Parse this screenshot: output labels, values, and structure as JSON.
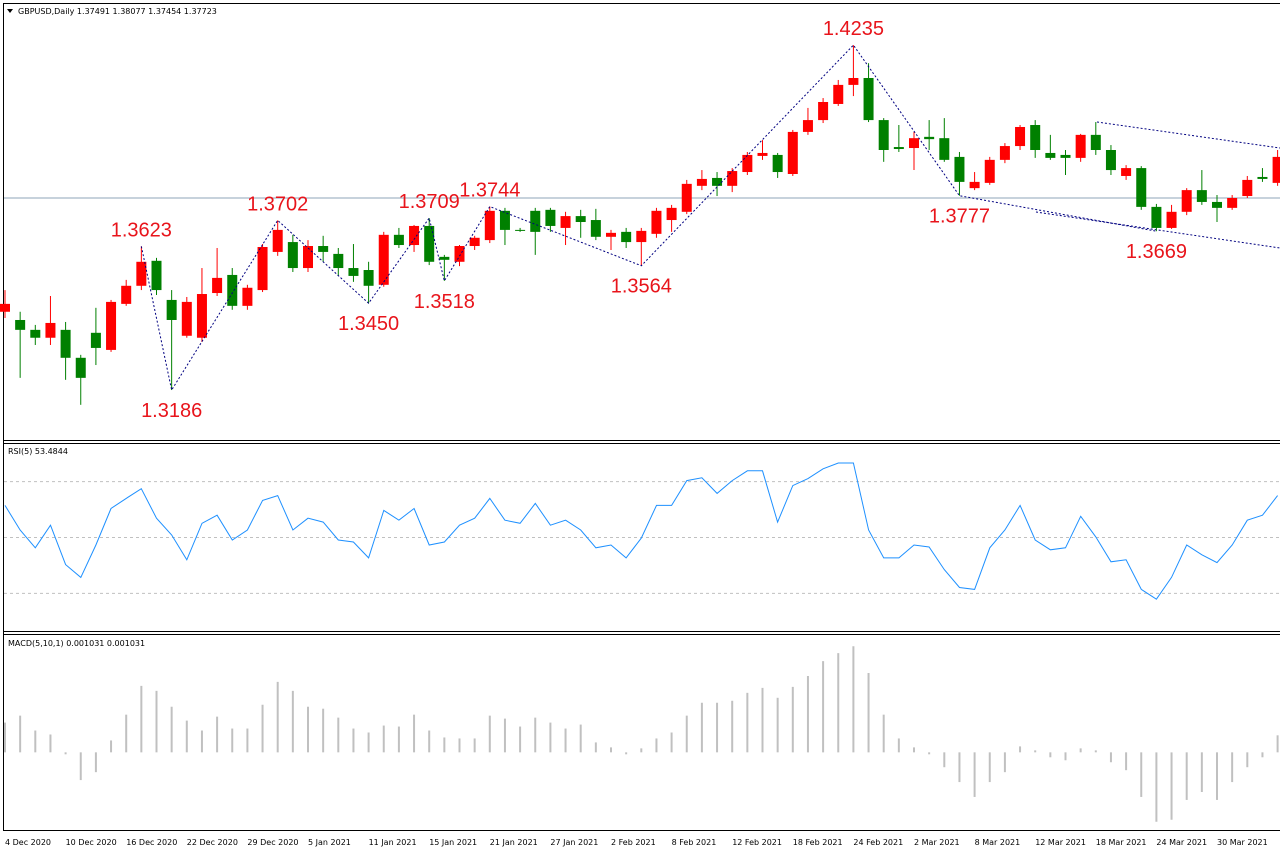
{
  "chart_data": [
    {
      "type": "candlestick",
      "title": "GBPUSD,Daily  1.37491 1.38077 1.37454 1.37723",
      "categories": [
        "4 Dec 2020",
        null,
        null,
        null,
        "10 Dec 2020",
        null,
        null,
        null,
        "16 Dec 2020",
        null,
        null,
        null,
        "22 Dec 2020",
        null,
        null,
        null,
        "29 Dec 2020",
        null,
        null,
        null,
        "5 Jan 2021",
        null,
        null,
        null,
        "11 Jan 2021",
        null,
        null,
        null,
        "15 Jan 2021",
        null,
        null,
        null,
        "21 Jan 2021",
        null,
        null,
        null,
        "27 Jan 2021",
        null,
        null,
        null,
        "2 Feb 2021",
        null,
        null,
        null,
        "8 Feb 2021",
        null,
        null,
        null,
        "12 Feb 2021",
        null,
        null,
        null,
        "18 Feb 2021",
        null,
        null,
        null,
        "24 Feb 2021",
        null,
        null,
        null,
        "2 Mar 2021",
        null,
        null,
        null,
        "8 Mar 2021",
        null,
        null,
        null,
        "12 Mar 2021",
        null,
        null,
        null,
        "18 Mar 2021",
        null,
        null,
        null,
        "24 Mar 2021",
        null,
        null,
        null,
        "30 Mar 2021",
        null,
        null,
        null,
        null
      ],
      "open": [
        1.3424,
        1.3399,
        1.3369,
        1.3345,
        1.3369,
        1.3284,
        1.336,
        1.3308,
        1.3448,
        1.3503,
        1.3579,
        1.346,
        1.3351,
        1.3345,
        1.3481,
        1.3536,
        1.3442,
        1.349,
        1.3606,
        1.3636,
        1.3557,
        1.3624,
        1.36,
        1.3557,
        1.3551,
        1.3506,
        1.3658,
        1.3627,
        1.3685,
        1.3591,
        1.3576,
        1.3624,
        1.3642,
        1.3731,
        1.3673,
        1.3731,
        1.3734,
        1.3679,
        1.3715,
        1.3703,
        1.3652,
        1.3667,
        1.3636,
        1.3661,
        1.3703,
        1.3728,
        1.3807,
        1.3831,
        1.3807,
        1.3849,
        1.3898,
        1.3901,
        1.3843,
        1.3971,
        1.4007,
        1.4056,
        1.4114,
        1.4135,
        1.4007,
        1.3925,
        1.3922,
        1.3956,
        1.3952,
        1.3895,
        1.38,
        1.3816,
        1.3886,
        1.3928,
        1.3992,
        1.3907,
        1.3901,
        1.3892,
        1.3962,
        1.3916,
        1.3837,
        1.3861,
        1.3743,
        1.3679,
        1.3728,
        1.3794,
        1.3758,
        1.374,
        1.3776,
        1.3834,
        1.3816
      ],
      "high": [
        1.349,
        1.3424,
        1.3384,
        1.3472,
        1.3393,
        1.3293,
        1.3436,
        1.346,
        1.3521,
        1.3623,
        1.3588,
        1.349,
        1.3469,
        1.3557,
        1.3618,
        1.3557,
        1.3506,
        1.363,
        1.3702,
        1.3658,
        1.3642,
        1.3655,
        1.3618,
        1.363,
        1.3576,
        1.3667,
        1.3679,
        1.3688,
        1.3709,
        1.3597,
        1.3627,
        1.3655,
        1.3744,
        1.374,
        1.3679,
        1.374,
        1.374,
        1.3728,
        1.3734,
        1.3737,
        1.3673,
        1.3679,
        1.3679,
        1.374,
        1.3749,
        1.3825,
        1.3855,
        1.3849,
        1.3861,
        1.391,
        1.3946,
        1.3907,
        1.3977,
        1.4044,
        1.4074,
        1.4129,
        1.4235,
        1.418,
        1.4013,
        1.3992,
        1.3971,
        1.4007,
        1.4013,
        1.391,
        1.3849,
        1.3895,
        1.3937,
        1.3992,
        1.4007,
        1.3962,
        1.3916,
        1.3965,
        1.4001,
        1.3931,
        1.387,
        1.3867,
        1.3752,
        1.3749,
        1.38,
        1.3855,
        1.3779,
        1.3779,
        1.3837,
        1.3861,
        1.3916
      ],
      "low": [
        1.3405,
        1.3223,
        1.3323,
        1.3323,
        1.3217,
        1.3141,
        1.3262,
        1.3302,
        1.3442,
        1.349,
        1.3475,
        1.3186,
        1.3345,
        1.3332,
        1.3472,
        1.343,
        1.343,
        1.3484,
        1.3594,
        1.3545,
        1.3545,
        1.3576,
        1.3533,
        1.3515,
        1.345,
        1.35,
        1.3618,
        1.3606,
        1.3566,
        1.3518,
        1.3563,
        1.3612,
        1.3633,
        1.3627,
        1.3667,
        1.3597,
        1.3667,
        1.3627,
        1.3649,
        1.3642,
        1.3612,
        1.3618,
        1.3564,
        1.3649,
        1.3667,
        1.3721,
        1.3794,
        1.3776,
        1.3788,
        1.384,
        1.3886,
        1.3831,
        1.3837,
        1.3962,
        1.3998,
        1.405,
        1.408,
        1.4001,
        1.388,
        1.391,
        1.3855,
        1.3916,
        1.388,
        1.3777,
        1.3794,
        1.381,
        1.3876,
        1.3916,
        1.3892,
        1.3886,
        1.384,
        1.388,
        1.3901,
        1.384,
        1.3825,
        1.3734,
        1.3669,
        1.3676,
        1.3718,
        1.3749,
        1.3697,
        1.3734,
        1.377,
        1.3819,
        1.3807
      ],
      "close": [
        1.3448,
        1.3369,
        1.3345,
        1.339,
        1.3284,
        1.3223,
        1.3314,
        1.3454,
        1.3503,
        1.3576,
        1.349,
        1.3399,
        1.3454,
        1.3478,
        1.3527,
        1.3442,
        1.3497,
        1.3621,
        1.3673,
        1.3557,
        1.3624,
        1.3606,
        1.3557,
        1.3533,
        1.3503,
        1.3658,
        1.3627,
        1.3685,
        1.3576,
        1.3582,
        1.3624,
        1.3649,
        1.3731,
        1.3673,
        1.367,
        1.3667,
        1.3685,
        1.3715,
        1.3697,
        1.3652,
        1.3664,
        1.3636,
        1.367,
        1.3731,
        1.374,
        1.3813,
        1.3828,
        1.3807,
        1.3852,
        1.3901,
        1.3907,
        1.3849,
        1.3971,
        1.4007,
        1.4062,
        1.4114,
        1.4135,
        1.4007,
        1.3916,
        1.3919,
        1.3952,
        1.3949,
        1.3886,
        1.3819,
        1.3819,
        1.3886,
        1.3928,
        1.3986,
        1.3916,
        1.3892,
        1.3892,
        1.3962,
        1.3916,
        1.3855,
        1.3861,
        1.3743,
        1.3679,
        1.3728,
        1.3794,
        1.3758,
        1.374,
        1.377,
        1.3825,
        1.3828,
        1.3895
      ],
      "up_color": "#ff0000",
      "down_color": "#008000",
      "ylim": [
        1.3034,
        1.4357
      ],
      "hline": 1.377,
      "annotations": [
        {
          "value": 1.3623,
          "label": "1.3623"
        },
        {
          "value": 1.3186,
          "label": "1.3186"
        },
        {
          "value": 1.3702,
          "label": "1.3702"
        },
        {
          "value": 1.345,
          "label": "1.3450"
        },
        {
          "value": 1.3709,
          "label": "1.3709"
        },
        {
          "value": 1.3518,
          "label": "1.3518"
        },
        {
          "value": 1.3744,
          "label": "1.3744"
        },
        {
          "value": 1.3564,
          "label": "1.3564"
        },
        {
          "value": 1.4235,
          "label": "1.4235"
        },
        {
          "value": 1.3777,
          "label": "1.3777"
        },
        {
          "value": 1.3669,
          "label": "1.3669"
        }
      ]
    },
    {
      "type": "line",
      "title": "RSI(5) 53.4844",
      "values": [
        61.5,
        52.7,
        46.3,
        54.4,
        40.3,
        35.7,
        47.3,
        60.4,
        64.0,
        67.5,
        56.9,
        50.9,
        42.0,
        55.1,
        58.0,
        49.1,
        52.7,
        63.3,
        65.0,
        52.7,
        56.9,
        55.5,
        49.1,
        48.4,
        42.7,
        59.7,
        56.2,
        60.4,
        47.3,
        48.4,
        54.4,
        56.9,
        64.0,
        56.2,
        55.1,
        62.2,
        54.4,
        56.2,
        52.7,
        46.3,
        47.3,
        42.7,
        49.8,
        61.5,
        61.5,
        70.4,
        71.4,
        65.8,
        70.4,
        73.9,
        73.9,
        55.5,
        68.6,
        71.1,
        74.6,
        76.7,
        76.7,
        52.7,
        42.7,
        42.7,
        47.3,
        46.6,
        38.5,
        32.1,
        31.4,
        46.3,
        52.7,
        61.5,
        49.1,
        45.6,
        46.3,
        57.6,
        50.2,
        41.3,
        42.0,
        31.4,
        27.9,
        35.7,
        47.3,
        43.8,
        41.0,
        47.3,
        56.2,
        58.0,
        65.0
      ],
      "color": "#1e90ff",
      "ylim": [
        16.5,
        83.5
      ],
      "levels": [
        30,
        50,
        70
      ]
    },
    {
      "type": "bar",
      "title": "MACD(5,10,1) 0.001031 0.001031",
      "values": [
        0.0018,
        0.00222,
        0.00132,
        0.00108,
        -0.00012,
        -0.00168,
        -0.0012,
        0.00072,
        0.00228,
        0.00402,
        0.00372,
        0.00276,
        0.00192,
        0.00132,
        0.00216,
        0.00144,
        0.00144,
        0.00288,
        0.00426,
        0.00372,
        0.00276,
        0.00264,
        0.0021,
        0.00144,
        0.0012,
        0.00162,
        0.00156,
        0.00228,
        0.00132,
        0.0009,
        0.00084,
        0.00084,
        0.00222,
        0.00204,
        0.00156,
        0.0021,
        0.0018,
        0.00144,
        0.00168,
        0.0006,
        0.0003,
        -0.00012,
        0.00024,
        0.00084,
        0.0012,
        0.00222,
        0.003,
        0.003,
        0.00312,
        0.0036,
        0.0039,
        0.0033,
        0.00396,
        0.00462,
        0.00552,
        0.006,
        0.00642,
        0.0048,
        0.00228,
        0.00084,
        0.0003,
        -0.00012,
        -0.0009,
        -0.0018,
        -0.0027,
        -0.0018,
        -0.0012,
        0.00036,
        0.00012,
        -0.0003,
        -0.00048,
        0.00024,
        0.00012,
        -0.0006,
        -0.00108,
        -0.0027,
        -0.0042,
        -0.00408,
        -0.00288,
        -0.0024,
        -0.00288,
        -0.0018,
        -0.0009,
        -0.0003,
        0.00103
      ],
      "color": "#c0c0c0",
      "ylim": [
        -0.0047,
        0.0071
      ]
    }
  ]
}
